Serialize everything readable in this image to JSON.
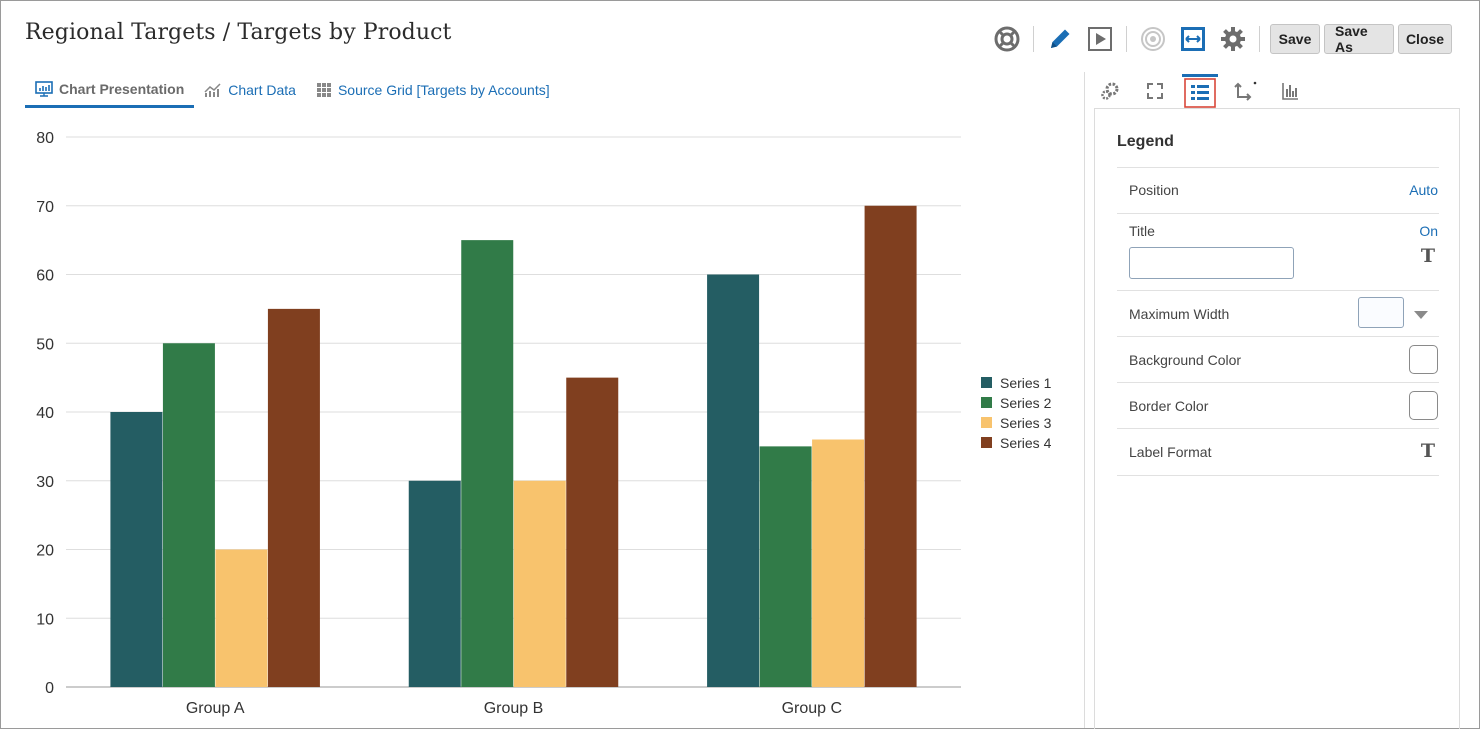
{
  "header": {
    "title": "Regional Targets / Targets by Product",
    "buttons": {
      "save": "Save",
      "save_as": "Save As",
      "close": "Close"
    },
    "icons": [
      "help-lifebuoy-icon",
      "edit-pencil-icon",
      "run-play-icon",
      "target-icon",
      "fit-width-icon",
      "settings-gear-icon"
    ]
  },
  "tabs": [
    {
      "label": "Chart Presentation",
      "icon": "chart-presentation-icon",
      "active": true
    },
    {
      "label": "Chart Data",
      "icon": "line-chart-icon",
      "active": false
    },
    {
      "label": "Source Grid [Targets by Accounts]",
      "icon": "grid-icon",
      "active": false
    }
  ],
  "chart_data": {
    "type": "bar",
    "categories": [
      "Group A",
      "Group B",
      "Group C"
    ],
    "series": [
      {
        "name": "Series 1",
        "values": [
          40,
          30,
          60
        ],
        "color": "#245d63"
      },
      {
        "name": "Series 2",
        "values": [
          50,
          65,
          35
        ],
        "color": "#317b48"
      },
      {
        "name": "Series 3",
        "values": [
          20,
          30,
          36
        ],
        "color": "#f8c36d"
      },
      {
        "name": "Series 4",
        "values": [
          55,
          45,
          70
        ],
        "color": "#803f1f"
      }
    ],
    "ylim": [
      0,
      80
    ],
    "yticks": [
      0,
      10,
      20,
      30,
      40,
      50,
      60,
      70,
      80
    ],
    "grid": true,
    "legend": "right"
  },
  "panel": {
    "tabs": [
      "general-gears-icon",
      "expand-icon",
      "legend-list-icon",
      "axis-icon",
      "series-bars-icon"
    ],
    "heading": "Legend",
    "position": {
      "label": "Position",
      "value": "Auto"
    },
    "title": {
      "label": "Title",
      "value": "On",
      "input": ""
    },
    "max_width": {
      "label": "Maximum Width"
    },
    "bg_color": {
      "label": "Background Color"
    },
    "border_color": {
      "label": "Border Color"
    },
    "label_format": {
      "label": "Label Format"
    }
  }
}
